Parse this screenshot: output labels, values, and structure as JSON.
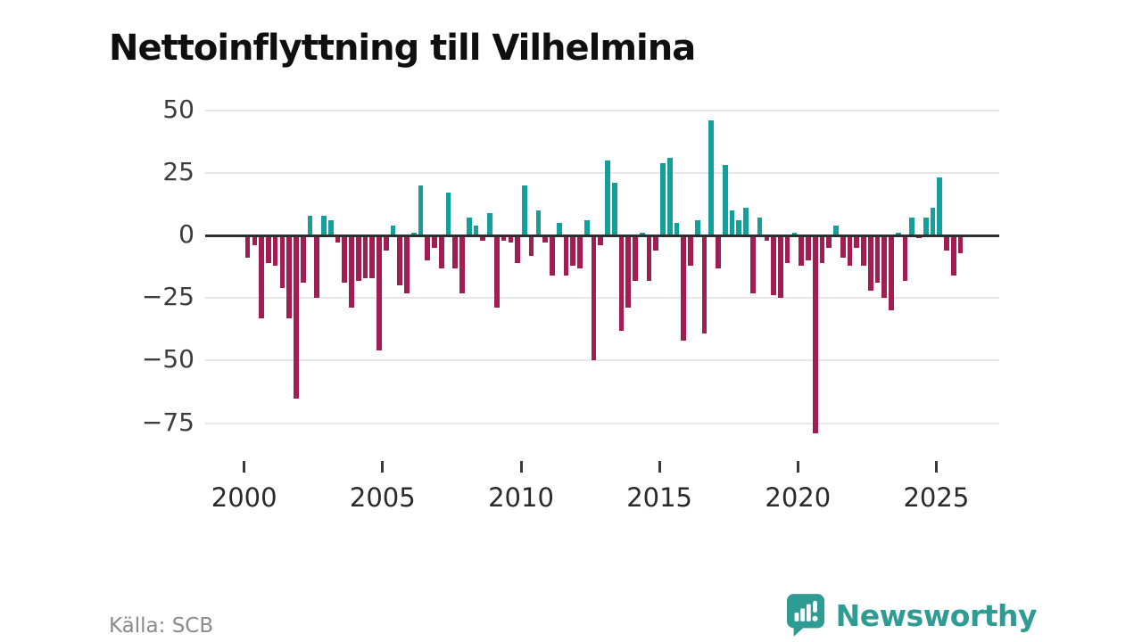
{
  "title": "Nettoinflyttning till Vilhelmina",
  "footer": {
    "source": "Källa: SCB"
  },
  "brand": {
    "name": "Newsworthy",
    "color": "#2e9c93"
  },
  "chart_data": {
    "type": "bar",
    "title": "Nettoinflyttning till Vilhelmina",
    "xlabel": "",
    "ylabel": "",
    "x_period": "quarterly",
    "grid": true,
    "legend": false,
    "ylim": [
      -85,
      55
    ],
    "yticks": [
      50,
      25,
      0,
      -25,
      -50,
      -75
    ],
    "xtick_years": [
      2000,
      2005,
      2010,
      2015,
      2020,
      2025
    ],
    "positive_color": "#14a09a",
    "negative_color": "#a31d52",
    "categories": [
      "2000 Q1",
      "2000 Q2",
      "2000 Q3",
      "2000 Q4",
      "2001 Q1",
      "2001 Q2",
      "2001 Q3",
      "2001 Q4",
      "2002 Q1",
      "2002 Q2",
      "2002 Q3",
      "2002 Q4",
      "2003 Q1",
      "2003 Q2",
      "2003 Q3",
      "2003 Q4",
      "2004 Q1",
      "2004 Q2",
      "2004 Q3",
      "2004 Q4",
      "2005 Q1",
      "2005 Q2",
      "2005 Q3",
      "2005 Q4",
      "2006 Q1",
      "2006 Q2",
      "2006 Q3",
      "2006 Q4",
      "2007 Q1",
      "2007 Q2",
      "2007 Q3",
      "2007 Q4",
      "2008 Q1",
      "2008 Q2",
      "2008 Q3",
      "2008 Q4",
      "2009 Q1",
      "2009 Q2",
      "2009 Q3",
      "2009 Q4",
      "2010 Q1",
      "2010 Q2",
      "2010 Q3",
      "2010 Q4",
      "2011 Q1",
      "2011 Q2",
      "2011 Q3",
      "2011 Q4",
      "2012 Q1",
      "2012 Q2",
      "2012 Q3",
      "2012 Q4",
      "2013 Q1",
      "2013 Q2",
      "2013 Q3",
      "2013 Q4",
      "2014 Q1",
      "2014 Q2",
      "2014 Q3",
      "2014 Q4",
      "2015 Q1",
      "2015 Q2",
      "2015 Q3",
      "2015 Q4",
      "2016 Q1",
      "2016 Q2",
      "2016 Q3",
      "2016 Q4",
      "2017 Q1",
      "2017 Q2",
      "2017 Q3",
      "2017 Q4",
      "2018 Q1",
      "2018 Q2",
      "2018 Q3",
      "2018 Q4",
      "2019 Q1",
      "2019 Q2",
      "2019 Q3",
      "2019 Q4",
      "2020 Q1",
      "2020 Q2",
      "2020 Q3",
      "2020 Q4",
      "2021 Q1",
      "2021 Q2",
      "2021 Q3",
      "2021 Q4",
      "2022 Q1",
      "2022 Q2",
      "2022 Q3",
      "2022 Q4",
      "2023 Q1",
      "2023 Q2",
      "2023 Q3",
      "2023 Q4",
      "2024 Q1",
      "2024 Q2",
      "2024 Q3",
      "2024 Q4",
      "2025 Q1",
      "2025 Q2",
      "2025 Q3",
      "2025 Q4"
    ],
    "values": [
      -9,
      -4,
      -33,
      -11,
      -12,
      -21,
      -33,
      -65,
      -19,
      8,
      -25,
      8,
      6,
      -3,
      -19,
      -29,
      -18,
      -17,
      -17,
      -46,
      -6,
      4,
      -20,
      -23,
      1,
      20,
      -10,
      -5,
      -13,
      17,
      -13,
      -23,
      7,
      4,
      -2,
      9,
      -29,
      -2,
      -3,
      -11,
      20,
      -8,
      10,
      -3,
      -16,
      5,
      -16,
      -12,
      -13,
      6,
      -50,
      -4,
      30,
      21,
      -38,
      -29,
      -18,
      1,
      -18,
      -6,
      29,
      31,
      5,
      -42,
      -12,
      6,
      -39,
      46,
      -13,
      28,
      10,
      6,
      11,
      -23,
      7,
      -2,
      -24,
      -25,
      -11,
      1,
      -12,
      -10,
      -79,
      -11,
      -5,
      4,
      -9,
      -12,
      -5,
      -12,
      -22,
      -19,
      -25,
      -30,
      1,
      -18,
      7,
      -1,
      7,
      11,
      23,
      -6,
      -16,
      -7
    ]
  }
}
